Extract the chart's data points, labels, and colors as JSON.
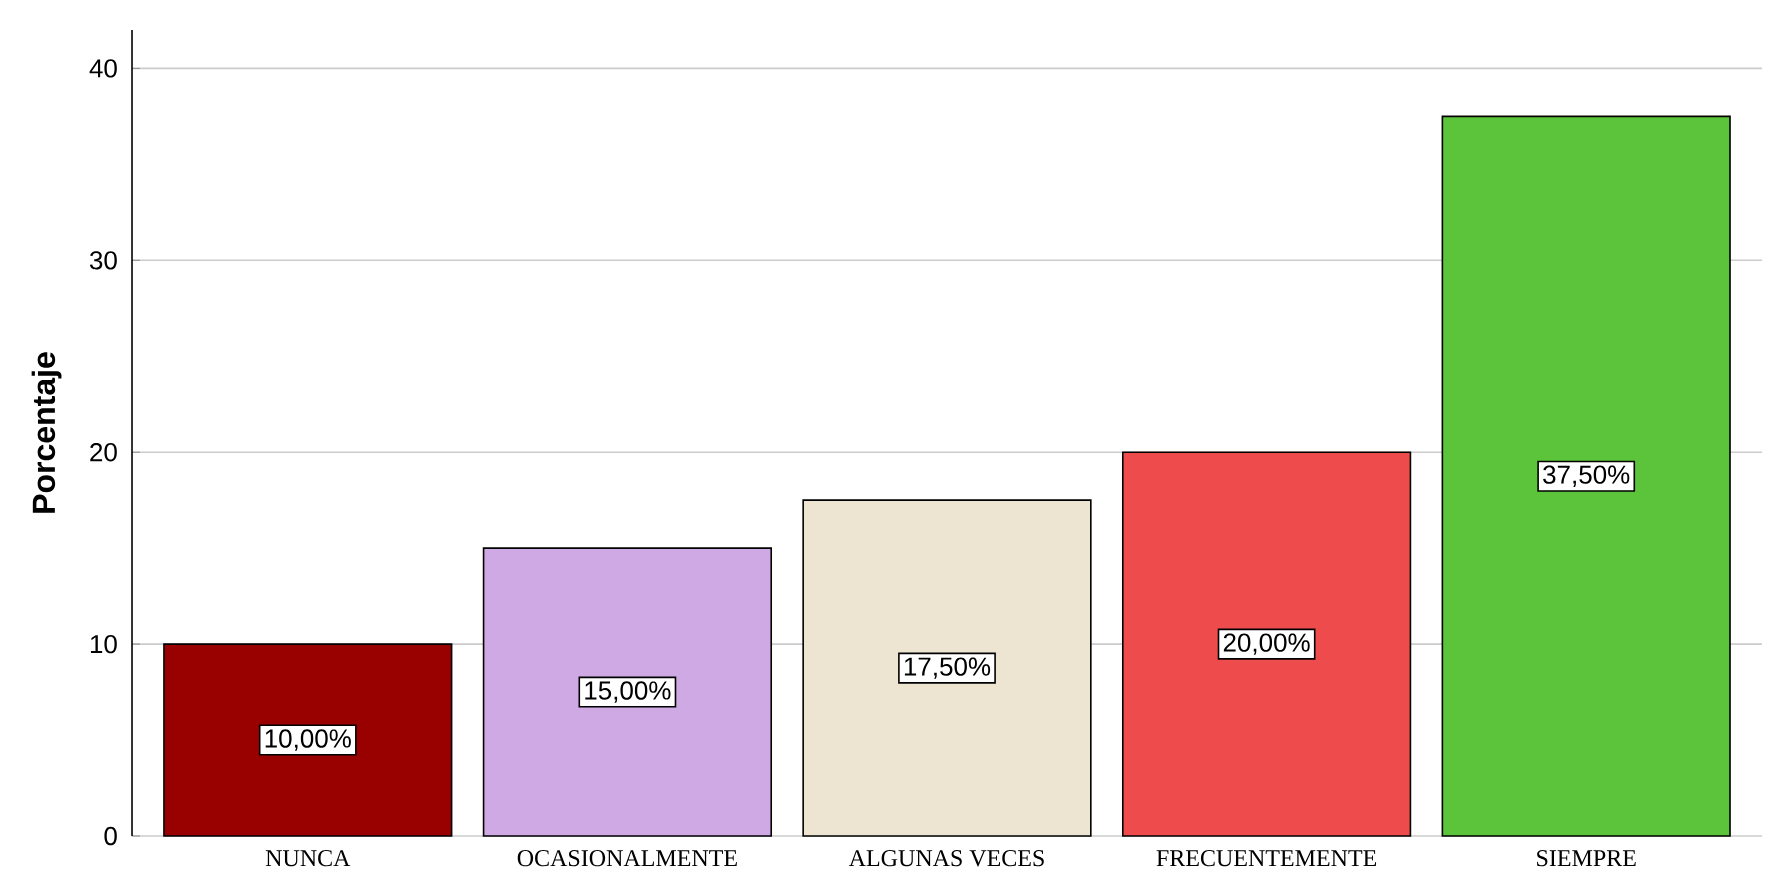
{
  "chart_data": {
    "type": "bar",
    "ylabel": "Porcentaje",
    "categories": [
      "NUNCA",
      "OCASIONALMENTE",
      "ALGUNAS VECES",
      "FRECUENTEMENTE",
      "SIEMPRE"
    ],
    "values": [
      10,
      15,
      17.5,
      20,
      37.5
    ],
    "colors": [
      "#990000",
      "#cfa9e4",
      "#ede4d2",
      "#ee4c4c",
      "#5cc43a"
    ],
    "value_labels": [
      "10,00%",
      "15,00%",
      "17,50%",
      "20,00%",
      "37,50%"
    ],
    "ylim": [
      0,
      42
    ],
    "yticks": [
      0,
      10,
      20,
      30,
      40
    ],
    "grid": "y"
  }
}
